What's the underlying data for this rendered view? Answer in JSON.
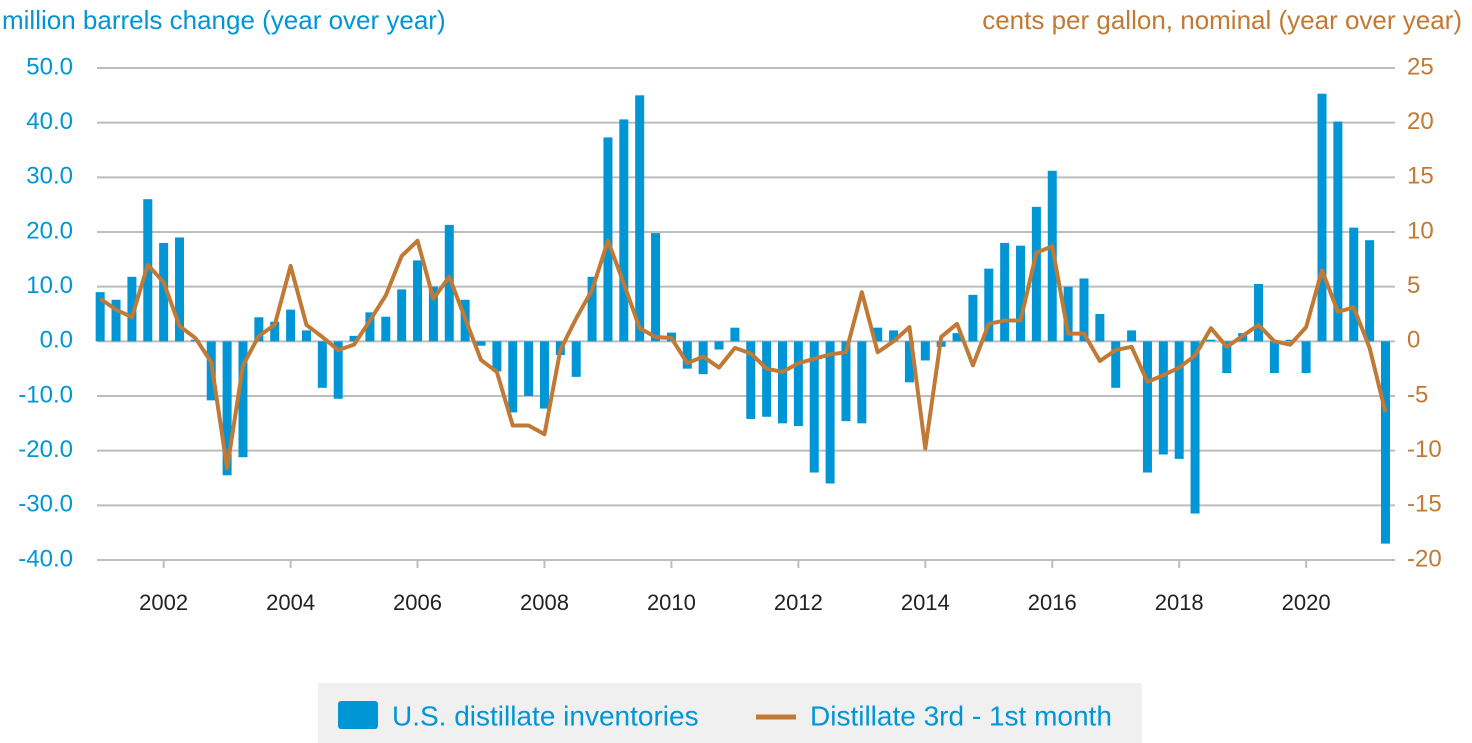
{
  "chart_data": {
    "type": "bar_line",
    "y_label": "million barrels change (year over year)",
    "y2_label": "cents per gallon, nominal (year over year)",
    "x": [
      2001,
      2001.25,
      2001.5,
      2001.75,
      2002,
      2002.25,
      2002.5,
      2002.75,
      2003,
      2003.25,
      2003.5,
      2003.75,
      2004,
      2004.25,
      2004.5,
      2004.75,
      2005,
      2005.25,
      2005.5,
      2005.75,
      2006,
      2006.25,
      2006.5,
      2006.75,
      2007,
      2007.25,
      2007.5,
      2007.75,
      2008,
      2008.25,
      2008.5,
      2008.75,
      2009,
      2009.25,
      2009.5,
      2009.75,
      2010,
      2010.25,
      2010.5,
      2010.75,
      2011,
      2011.25,
      2011.5,
      2011.75,
      2012,
      2012.25,
      2012.5,
      2012.75,
      2013,
      2013.25,
      2013.5,
      2013.75,
      2014,
      2014.25,
      2014.5,
      2014.75,
      2015,
      2015.25,
      2015.5,
      2015.75,
      2016,
      2016.25,
      2016.5,
      2016.75,
      2017,
      2017.25,
      2017.5,
      2017.75,
      2018,
      2018.25,
      2018.5,
      2018.75,
      2019,
      2019.25,
      2019.5,
      2019.75,
      2020,
      2020.25,
      2020.5,
      2020.75,
      2021,
      2021.25
    ],
    "series": [
      {
        "name": "U.S. distillate inventories",
        "color": "#0096d6",
        "kind": "bar",
        "axis": "y",
        "values": [
          9.0,
          7.6,
          11.8,
          26,
          18,
          19,
          0.3,
          -10.8,
          -24.5,
          -21.2,
          4.4,
          3.6,
          5.8,
          2.0,
          -8.5,
          -10.5,
          1.0,
          5.3,
          4.5,
          9.5,
          14.8,
          10.0,
          21.3,
          7.6,
          -0.8,
          -5.5,
          -13,
          -10,
          -12.3,
          -2.5,
          -6.5,
          11.8,
          37.3,
          40.6,
          45,
          19.8,
          1.6,
          -5,
          -6,
          -1.5,
          2.5,
          -14.2,
          -13.8,
          -15,
          -15.5,
          -24,
          -26,
          -14.6,
          -15,
          2.5,
          2.0,
          -7.5,
          -3.5,
          -1,
          1.5,
          8.5,
          13.3,
          18,
          17.5,
          24.6,
          31.2,
          10,
          11.5,
          5,
          -8.5,
          2.0,
          -24,
          -20.7,
          -21.5,
          -31.5,
          0.3,
          -5.8,
          1.5,
          10.5,
          -5.8,
          0.3,
          -5.8,
          45.3,
          40.2,
          20.8,
          18.5,
          -37
        ]
      },
      {
        "name": "Distillate 3rd - 1st month",
        "color": "#c07a35",
        "kind": "line",
        "axis": "y2",
        "values": [
          3.9,
          2.9,
          2.2,
          7.0,
          5.4,
          1.4,
          0.3,
          -1.9,
          -11.6,
          -2.2,
          0.5,
          1.5,
          6.9,
          1.5,
          0.4,
          -0.8,
          -0.3,
          1.9,
          4.2,
          7.8,
          9.2,
          3.9,
          5.9,
          2.1,
          -1.7,
          -2.8,
          -7.7,
          -7.7,
          -8.5,
          -0.8,
          2.1,
          4.7,
          9.2,
          5.3,
          1.2,
          0.4,
          0.3,
          -2.0,
          -1.4,
          -2.4,
          -0.6,
          -1.1,
          -2.5,
          -2.8,
          -2.0,
          -1.6,
          -1.2,
          -1.0,
          4.5,
          -1.0,
          0,
          1.3,
          -9.8,
          0.4,
          1.6,
          -2.2,
          1.6,
          1.9,
          1.9,
          8.1,
          8.7,
          0.7,
          0.7,
          -1.8,
          -0.8,
          -0.5,
          -3.7,
          -3.1,
          -2.4,
          -1.3,
          1.2,
          -0.5,
          0.5,
          1.5,
          0,
          -0.3,
          1.3,
          6.5,
          2.7,
          3.1,
          -0.6,
          -6.5
        ]
      }
    ],
    "xlim": [
      2000.95,
      2021.4
    ],
    "xticks": [
      2002,
      2004,
      2006,
      2008,
      2010,
      2012,
      2014,
      2016,
      2018,
      2020
    ],
    "ylim": [
      -40,
      50
    ],
    "yticks": [
      {
        "value": -40,
        "label": "-40.0"
      },
      {
        "value": -30,
        "label": "-30.0"
      },
      {
        "value": -20,
        "label": "-20.0"
      },
      {
        "value": -10,
        "label": "-10.0"
      },
      {
        "value": 0,
        "label": "0.0"
      },
      {
        "value": 10,
        "label": "10.0"
      },
      {
        "value": 20,
        "label": "20.0"
      },
      {
        "value": 30,
        "label": "30.0"
      },
      {
        "value": 40,
        "label": "40.0"
      },
      {
        "value": 50,
        "label": "50.0"
      }
    ],
    "y2lim": [
      -20,
      25
    ],
    "y2ticks": [
      -20,
      -15,
      -10,
      -5,
      0,
      5,
      10,
      15,
      20,
      25
    ],
    "grid": true,
    "legend": "bottom"
  }
}
